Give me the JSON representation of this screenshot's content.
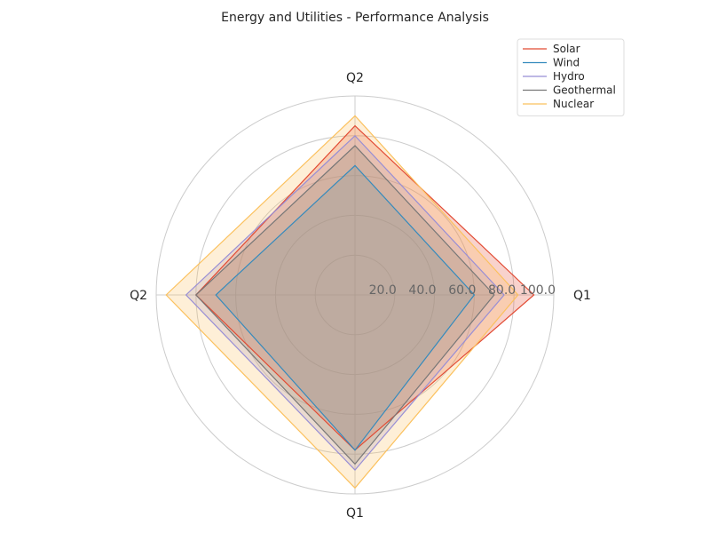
{
  "chart_data": {
    "type": "radar",
    "title": "Energy and Utilities - Performance Analysis",
    "axes": [
      "Q1",
      "Q2",
      "Q2",
      "Q1"
    ],
    "rlim": [
      0,
      100
    ],
    "r_ticks": [
      "20.0",
      "40.0",
      "60.0",
      "80.0",
      "100.0"
    ],
    "r_tick_values": [
      20,
      40,
      60,
      80,
      100
    ],
    "legend_position": "top-right",
    "grid": true,
    "series": [
      {
        "name": "Solar",
        "color": "#e24a33",
        "values": [
          90,
          85,
          80,
          78
        ]
      },
      {
        "name": "Wind",
        "color": "#348abd",
        "values": [
          60,
          65,
          70,
          78
        ]
      },
      {
        "name": "Hydro",
        "color": "#988ed5",
        "values": [
          75,
          80,
          85,
          88
        ]
      },
      {
        "name": "Geothermal",
        "color": "#777777",
        "values": [
          70,
          75,
          80,
          85
        ]
      },
      {
        "name": "Nuclear",
        "color": "#fbc15e",
        "values": [
          82,
          90,
          95,
          97
        ]
      }
    ]
  }
}
